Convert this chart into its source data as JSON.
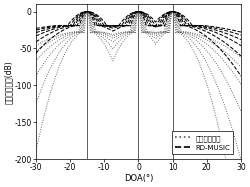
{
  "xlim": [
    -30,
    30
  ],
  "ylim": [
    -200,
    10
  ],
  "xticks": [
    -30,
    -20,
    -10,
    0,
    10,
    20,
    30
  ],
  "yticks": [
    0,
    -50,
    -100,
    -150,
    -200
  ],
  "xlabel": "DOA(°)",
  "ylabel": "归一化谱局値(dB)",
  "vlines": [
    -15,
    0,
    10
  ],
  "peaks": [
    -15,
    0,
    10
  ],
  "legend_dashed": "RD-MUSIC",
  "legend_dotted": "本发明的算法",
  "bg_color": "#ffffff",
  "dashed_spreads": [
    0.55,
    0.7,
    0.85,
    1.0,
    1.18,
    1.38
  ],
  "dotted_spreads": [
    0.35,
    0.45,
    0.57,
    0.7,
    0.85,
    1.0
  ]
}
